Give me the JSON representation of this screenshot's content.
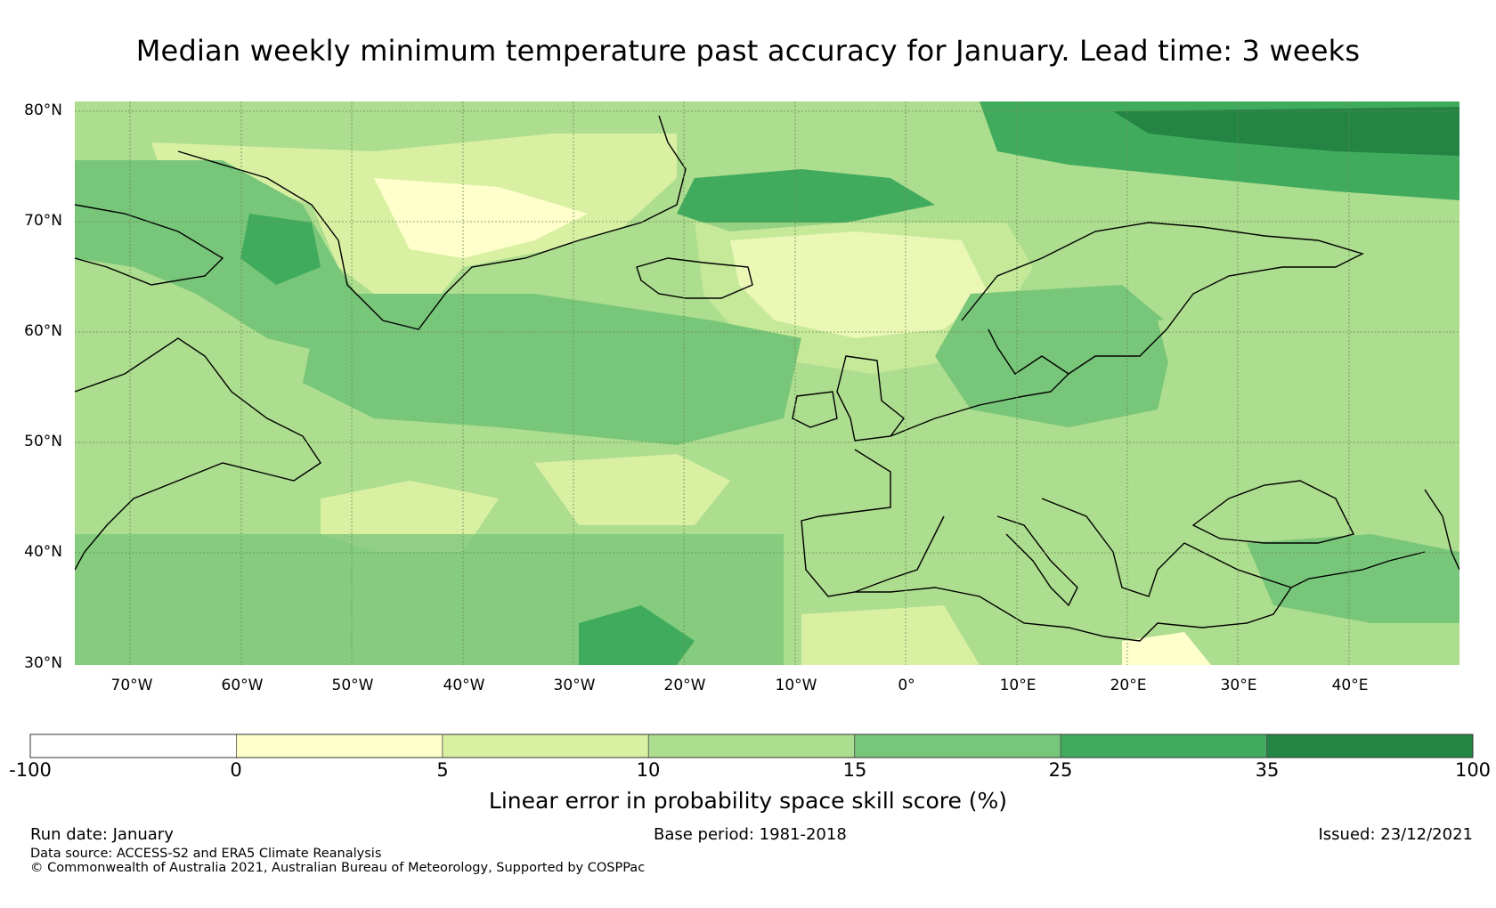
{
  "title": "Median weekly minimum temperature past accuracy for January. Lead time: 3 weeks",
  "map": {
    "lat_ticks": [
      "80°N",
      "70°N",
      "60°N",
      "50°N",
      "40°N",
      "30°N"
    ],
    "lon_ticks": [
      "70°W",
      "60°W",
      "50°W",
      "40°W",
      "30°W",
      "20°W",
      "10°W",
      "0°",
      "10°E",
      "20°E",
      "30°E",
      "40°E"
    ],
    "extent": {
      "lon_min": -75,
      "lon_max": 50,
      "lat_min": 30,
      "lat_max": 81
    }
  },
  "colorbar": {
    "ticks": [
      "-100",
      "0",
      "5",
      "10",
      "15",
      "25",
      "35",
      "100"
    ],
    "colors": [
      "#ffffff",
      "#ffffcc",
      "#d9f0a3",
      "#addd8e",
      "#78c679",
      "#41ab5d",
      "#238443"
    ],
    "label": "Linear error in probability space skill score (%)"
  },
  "footer": {
    "run_date": "Run date: January",
    "base_period": "Base period: 1981-2018",
    "issued": "Issued: 23/12/2021",
    "data_source": "Data source: ACCESS-S2 and ERA5 Climate Reanalysis",
    "copyright": "© Commonwealth of Australia 2021, Australian Bureau of Meteorology, Supported by COSPPac"
  }
}
